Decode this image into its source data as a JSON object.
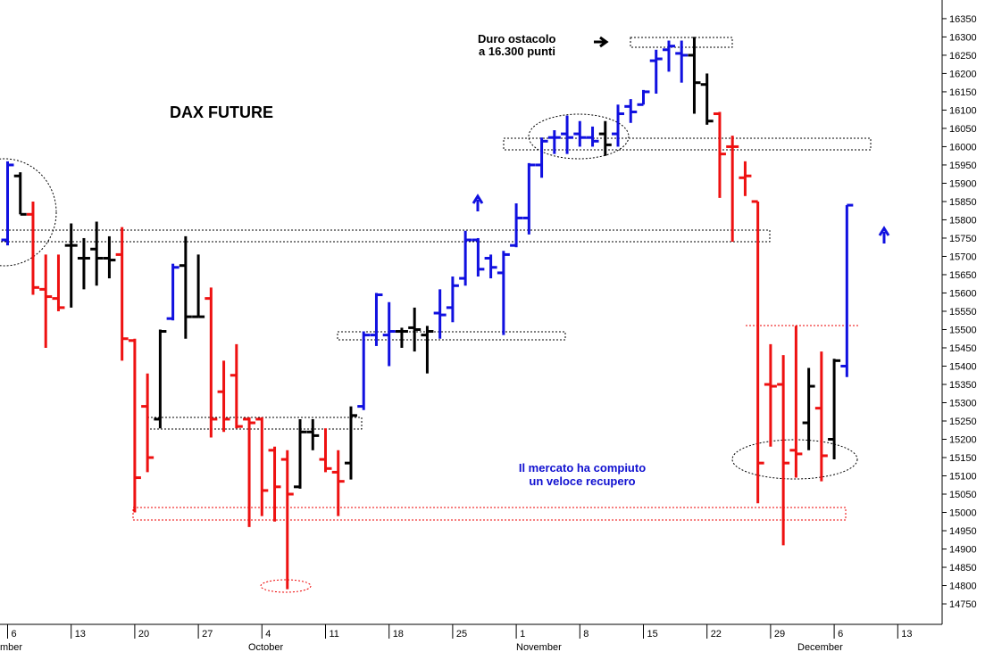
{
  "chart_data": {
    "type": "ohlc",
    "title": "DAX FUTURE",
    "notes": [
      [
        "Duro ostacolo",
        "a 16.300 punti"
      ],
      [
        "Il mercato ha compiuto",
        "un veloce recupero"
      ]
    ],
    "note_colors": [
      "#000000",
      "#1010d0"
    ],
    "month_labels": [
      "mber",
      "October",
      "November",
      "December"
    ],
    "categories": [
      "6",
      null,
      null,
      null,
      null,
      "13",
      null,
      null,
      null,
      null,
      "20",
      null,
      null,
      null,
      null,
      "27",
      null,
      null,
      null,
      null,
      "4",
      null,
      null,
      null,
      null,
      "11",
      null,
      null,
      null,
      null,
      "18",
      null,
      null,
      null,
      null,
      "25",
      null,
      null,
      null,
      null,
      "1",
      null,
      null,
      null,
      null,
      "8",
      null,
      null,
      null,
      null,
      "15",
      null,
      null,
      null,
      null,
      "22",
      null,
      null,
      null,
      null,
      "29",
      null,
      null,
      null,
      null,
      "6",
      null,
      null,
      null,
      null,
      "13",
      null,
      null,
      null
    ],
    "open": [
      15745,
      15920,
      15815,
      15610,
      15585,
      15730,
      15695,
      15720,
      15695,
      15705,
      15470,
      15290,
      15255,
      15530,
      15675,
      15535,
      15585,
      15330,
      15375,
      15255,
      15255,
      15170,
      15145,
      15070,
      15220,
      15145,
      15110,
      15135,
      15290,
      15485,
      15485,
      15495,
      15505,
      15485,
      15545,
      15560,
      15640,
      15745,
      15695,
      15655,
      15730,
      15805,
      15950,
      16025,
      16035,
      16035,
      16025,
      16035,
      16035,
      16110,
      16115,
      16235,
      16265,
      16255,
      16250,
      16170,
      16090,
      16000,
      15915,
      15850,
      15350,
      15350,
      15170,
      15245,
      15285,
      15200,
      15400,
      null,
      null,
      null,
      null,
      null,
      null,
      null
    ],
    "high": [
      15960,
      15930,
      15850,
      15705,
      15705,
      15790,
      15750,
      15795,
      15755,
      15780,
      15475,
      15380,
      15500,
      15680,
      15755,
      15705,
      15615,
      15415,
      15460,
      15260,
      15260,
      15180,
      15170,
      15255,
      15255,
      15230,
      15170,
      15290,
      15495,
      15600,
      15575,
      15505,
      15560,
      15510,
      15610,
      15645,
      15770,
      15750,
      15705,
      15715,
      15845,
      15955,
      16025,
      16045,
      16085,
      16070,
      16055,
      16070,
      16115,
      16130,
      16155,
      16265,
      16290,
      16290,
      16300,
      16200,
      16095,
      16030,
      15960,
      15850,
      15460,
      15430,
      15510,
      15395,
      15440,
      15420,
      15840,
      null,
      null,
      null,
      null,
      null,
      null,
      null
    ],
    "low": [
      15730,
      15815,
      15595,
      15450,
      15550,
      15560,
      15610,
      15620,
      15640,
      15415,
      15000,
      15110,
      15230,
      15525,
      15475,
      15535,
      15205,
      15220,
      15230,
      14960,
      14990,
      14975,
      14790,
      15065,
      15170,
      15110,
      14990,
      15090,
      15280,
      15455,
      15400,
      15450,
      15440,
      15380,
      15475,
      15520,
      15620,
      15645,
      15640,
      15485,
      15725,
      15760,
      15915,
      15980,
      15980,
      16000,
      16000,
      15975,
      16000,
      16065,
      16115,
      16145,
      16205,
      16175,
      16090,
      16060,
      15860,
      15740,
      15865,
      15025,
      15180,
      14910,
      15095,
      15170,
      15085,
      15145,
      15370,
      null,
      null,
      null,
      null,
      null,
      null,
      null
    ],
    "close": [
      15950,
      15815,
      15615,
      15590,
      15560,
      15730,
      15695,
      15695,
      15690,
      15475,
      15095,
      15150,
      15495,
      15670,
      15535,
      15535,
      15255,
      15255,
      15235,
      15245,
      15060,
      15070,
      15050,
      15220,
      15210,
      15120,
      15085,
      15265,
      15485,
      15595,
      15495,
      15495,
      15500,
      15495,
      15540,
      15620,
      15745,
      15665,
      15670,
      15705,
      15805,
      15950,
      16015,
      16025,
      16025,
      16025,
      16015,
      16005,
      16090,
      16095,
      16150,
      16240,
      16275,
      16250,
      16175,
      16070,
      15980,
      16000,
      15920,
      15135,
      15345,
      15135,
      15160,
      15345,
      15155,
      15415,
      15840,
      null,
      null,
      null,
      null,
      null,
      null,
      null
    ],
    "bar_colors": [
      "#1010e0",
      "#000000",
      "#ee1111",
      "#ee1111",
      "#ee1111",
      "#000000",
      "#000000",
      "#000000",
      "#000000",
      "#ee1111",
      "#ee1111",
      "#ee1111",
      "#000000",
      "#1010e0",
      "#000000",
      "#000000",
      "#ee1111",
      "#ee1111",
      "#ee1111",
      "#ee1111",
      "#ee1111",
      "#ee1111",
      "#ee1111",
      "#000000",
      "#000000",
      "#ee1111",
      "#ee1111",
      "#000000",
      "#1010e0",
      "#1010e0",
      "#1010e0",
      "#000000",
      "#000000",
      "#000000",
      "#1010e0",
      "#1010e0",
      "#1010e0",
      "#1010e0",
      "#1010e0",
      "#1010e0",
      "#1010e0",
      "#1010e0",
      "#1010e0",
      "#1010e0",
      "#1010e0",
      "#1010e0",
      "#1010e0",
      "#000000",
      "#1010e0",
      "#1010e0",
      "#1010e0",
      "#1010e0",
      "#1010e0",
      "#1010e0",
      "#000000",
      "#000000",
      "#ee1111",
      "#ee1111",
      "#ee1111",
      "#ee1111",
      "#ee1111",
      "#ee1111",
      "#ee1111",
      "#000000",
      "#ee1111",
      "#000000",
      "#1010e0",
      null,
      null,
      null,
      null,
      null,
      null,
      null
    ],
    "ylim": [
      14694,
      16401
    ],
    "yticks": [
      14750,
      14800,
      14850,
      14900,
      14950,
      15000,
      15050,
      15100,
      15150,
      15200,
      15250,
      15300,
      15350,
      15400,
      15450,
      15500,
      15550,
      15600,
      15650,
      15700,
      15750,
      15800,
      15850,
      15900,
      15950,
      16000,
      16050,
      16100,
      16150,
      16200,
      16250,
      16300,
      16350
    ]
  }
}
